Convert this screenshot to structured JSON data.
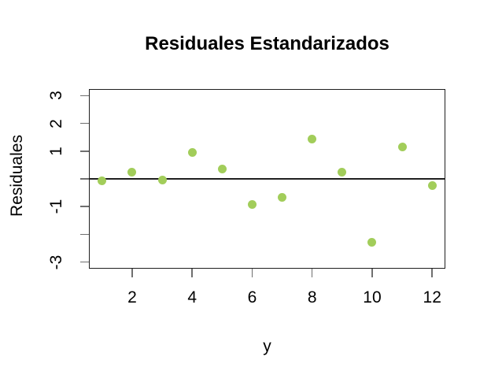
{
  "chart_data": {
    "type": "scatter",
    "title": "Residuales Estandarizados",
    "xlabel": "y",
    "ylabel": "Residuales",
    "x": [
      1,
      2,
      3,
      4,
      5,
      6,
      7,
      8,
      9,
      10,
      11,
      12
    ],
    "y": [
      -0.07,
      0.23,
      -0.05,
      0.94,
      0.36,
      -0.91,
      -0.67,
      1.44,
      0.25,
      -2.28,
      1.16,
      -0.25
    ],
    "xlim": [
      0.56,
      12.44
    ],
    "ylim": [
      -3.24,
      3.24
    ],
    "x_ticks": [
      {
        "value": 2,
        "label": "2"
      },
      {
        "value": 4,
        "label": "4"
      },
      {
        "value": 6,
        "label": "6"
      },
      {
        "value": 8,
        "label": "8"
      },
      {
        "value": 10,
        "label": "10"
      },
      {
        "value": 12,
        "label": "12"
      }
    ],
    "y_ticks": [
      {
        "value": 3,
        "label": "3"
      },
      {
        "value": 2,
        "label": "2"
      },
      {
        "value": 1,
        "label": "1"
      },
      {
        "value": 0,
        "label": ""
      },
      {
        "value": -1,
        "label": "-1"
      },
      {
        "value": -2,
        "label": ""
      },
      {
        "value": -3,
        "label": "-3"
      }
    ],
    "reference_line_y": 0,
    "grid": false,
    "legend": null,
    "colors": {
      "point_fill": "#a2cd5a",
      "axis_box": "#1f1f1f",
      "tick_mark": "#6f6f6f",
      "text": "#000000",
      "background": "#ffffff"
    }
  }
}
